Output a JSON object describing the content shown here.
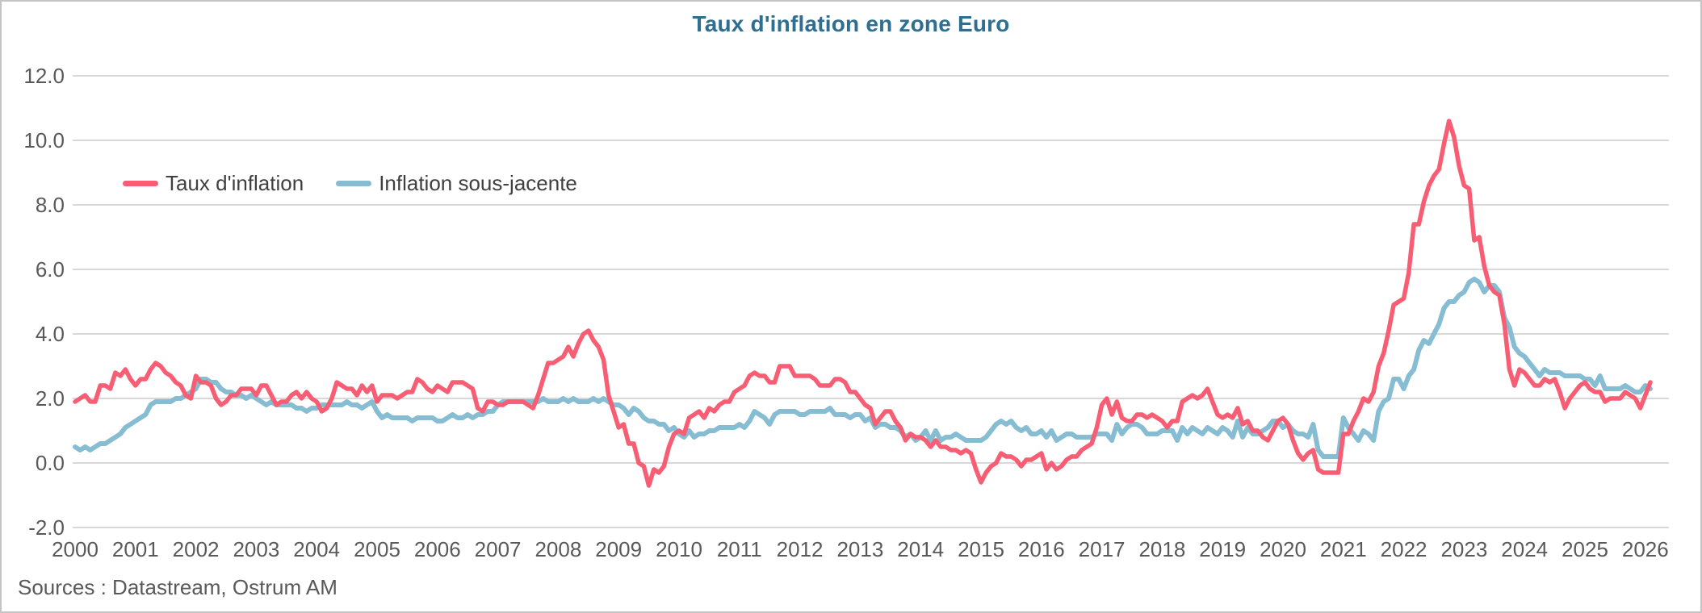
{
  "chart_data": {
    "type": "line",
    "title": "Taux d'inflation en zone Euro",
    "source_note": "Sources : Datastream, Ostrum AM",
    "x_unit": "month",
    "x_range": [
      "2000-01",
      "2026-02"
    ],
    "x_tick_labels": [
      "2000",
      "2001",
      "2002",
      "2003",
      "2004",
      "2005",
      "2006",
      "2007",
      "2008",
      "2009",
      "2010",
      "2011",
      "2012",
      "2013",
      "2014",
      "2015",
      "2016",
      "2017",
      "2018",
      "2019",
      "2020",
      "2021",
      "2022",
      "2023",
      "2024",
      "2025",
      "2026"
    ],
    "ylim": [
      -2,
      12
    ],
    "y_ticks": [
      12,
      10,
      8,
      6,
      4,
      2,
      0,
      -2
    ],
    "y_tick_labels": [
      "12.0",
      "10.0",
      "8.0",
      "6.0",
      "4.0",
      "2.0",
      "0.0",
      "-2.0"
    ],
    "grid": "horizontal",
    "legend_position": "top-left-inside",
    "colors": {
      "title": "#2E6E90",
      "axis_text": "#595959",
      "legend_text": "#404040",
      "grid": "#D8D8D8",
      "border": "#C4C4C4",
      "background": "#FFFFFF"
    },
    "series": [
      {
        "name": "Taux d'inflation",
        "color": "#F75D73",
        "values": [
          1.9,
          2.0,
          2.1,
          1.9,
          1.9,
          2.4,
          2.4,
          2.3,
          2.8,
          2.7,
          2.9,
          2.6,
          2.4,
          2.6,
          2.6,
          2.9,
          3.1,
          3.0,
          2.8,
          2.7,
          2.5,
          2.4,
          2.1,
          2.0,
          2.7,
          2.5,
          2.5,
          2.4,
          2.0,
          1.8,
          1.9,
          2.1,
          2.1,
          2.3,
          2.3,
          2.3,
          2.1,
          2.4,
          2.4,
          2.1,
          1.8,
          1.9,
          1.9,
          2.1,
          2.2,
          2.0,
          2.2,
          2.0,
          1.9,
          1.6,
          1.7,
          2.0,
          2.5,
          2.4,
          2.3,
          2.3,
          2.1,
          2.4,
          2.2,
          2.4,
          1.9,
          2.1,
          2.1,
          2.1,
          2.0,
          2.1,
          2.2,
          2.2,
          2.6,
          2.5,
          2.3,
          2.2,
          2.4,
          2.3,
          2.2,
          2.5,
          2.5,
          2.5,
          2.4,
          2.3,
          1.7,
          1.6,
          1.9,
          1.9,
          1.8,
          1.8,
          1.9,
          1.9,
          1.9,
          1.9,
          1.8,
          1.7,
          2.1,
          2.6,
          3.1,
          3.1,
          3.2,
          3.3,
          3.6,
          3.3,
          3.7,
          4.0,
          4.1,
          3.8,
          3.6,
          3.2,
          2.1,
          1.6,
          1.1,
          1.2,
          0.6,
          0.6,
          0.0,
          -0.1,
          -0.7,
          -0.2,
          -0.3,
          -0.1,
          0.5,
          0.9,
          1.0,
          0.9,
          1.4,
          1.5,
          1.6,
          1.4,
          1.7,
          1.6,
          1.8,
          1.9,
          1.9,
          2.2,
          2.3,
          2.4,
          2.7,
          2.8,
          2.7,
          2.7,
          2.5,
          2.5,
          3.0,
          3.0,
          3.0,
          2.7,
          2.7,
          2.7,
          2.7,
          2.6,
          2.4,
          2.4,
          2.4,
          2.6,
          2.6,
          2.5,
          2.2,
          2.2,
          2.0,
          1.8,
          1.7,
          1.2,
          1.4,
          1.6,
          1.6,
          1.3,
          1.1,
          0.7,
          0.9,
          0.8,
          0.8,
          0.7,
          0.5,
          0.7,
          0.5,
          0.5,
          0.4,
          0.4,
          0.3,
          0.4,
          0.3,
          -0.2,
          -0.6,
          -0.3,
          -0.1,
          0.0,
          0.3,
          0.2,
          0.2,
          0.1,
          -0.1,
          0.1,
          0.1,
          0.2,
          0.3,
          -0.2,
          0.0,
          -0.2,
          -0.1,
          0.1,
          0.2,
          0.2,
          0.4,
          0.5,
          0.6,
          1.1,
          1.8,
          2.0,
          1.5,
          1.9,
          1.4,
          1.3,
          1.3,
          1.5,
          1.5,
          1.4,
          1.5,
          1.4,
          1.3,
          1.1,
          1.3,
          1.3,
          1.9,
          2.0,
          2.1,
          2.0,
          2.1,
          2.3,
          1.9,
          1.5,
          1.4,
          1.5,
          1.4,
          1.7,
          1.2,
          1.3,
          1.0,
          1.0,
          0.8,
          0.7,
          1.0,
          1.3,
          1.4,
          1.2,
          0.7,
          0.3,
          0.1,
          0.3,
          0.4,
          -0.2,
          -0.3,
          -0.3,
          -0.3,
          -0.3,
          0.9,
          0.9,
          1.3,
          1.6,
          2.0,
          1.9,
          2.2,
          3.0,
          3.4,
          4.1,
          4.9,
          5.0,
          5.1,
          5.9,
          7.4,
          7.4,
          8.1,
          8.6,
          8.9,
          9.1,
          9.9,
          10.6,
          10.1,
          9.2,
          8.6,
          8.5,
          6.9,
          7.0,
          6.1,
          5.5,
          5.3,
          5.2,
          4.3,
          2.9,
          2.4,
          2.9,
          2.8,
          2.6,
          2.4,
          2.4,
          2.6,
          2.5,
          2.6,
          2.2,
          1.7,
          2.0,
          2.2,
          2.4,
          2.5,
          2.3,
          2.2,
          2.2,
          1.9,
          2.0,
          2.0,
          2.0,
          2.2,
          2.1,
          2.0,
          1.7,
          2.1,
          2.5
        ]
      },
      {
        "name": "Inflation sous-jacente",
        "color": "#87BDD2",
        "values": [
          0.5,
          0.4,
          0.5,
          0.4,
          0.5,
          0.6,
          0.6,
          0.7,
          0.8,
          0.9,
          1.1,
          1.2,
          1.3,
          1.4,
          1.5,
          1.8,
          1.9,
          1.9,
          1.9,
          1.9,
          2.0,
          2.0,
          2.1,
          2.2,
          2.3,
          2.6,
          2.6,
          2.5,
          2.5,
          2.3,
          2.2,
          2.2,
          2.1,
          2.1,
          2.0,
          2.1,
          2.0,
          1.9,
          1.8,
          1.9,
          1.8,
          1.8,
          1.8,
          1.8,
          1.7,
          1.7,
          1.6,
          1.7,
          1.7,
          1.8,
          1.8,
          1.8,
          1.8,
          1.8,
          1.9,
          1.8,
          1.8,
          1.7,
          1.8,
          1.9,
          1.6,
          1.4,
          1.5,
          1.4,
          1.4,
          1.4,
          1.4,
          1.3,
          1.4,
          1.4,
          1.4,
          1.4,
          1.3,
          1.3,
          1.4,
          1.5,
          1.4,
          1.4,
          1.5,
          1.4,
          1.5,
          1.5,
          1.6,
          1.6,
          1.8,
          1.9,
          1.9,
          1.9,
          1.9,
          1.9,
          1.9,
          1.9,
          1.9,
          2.0,
          1.9,
          1.9,
          1.9,
          2.0,
          1.9,
          2.0,
          1.9,
          1.9,
          1.9,
          2.0,
          1.9,
          2.0,
          1.9,
          1.8,
          1.8,
          1.7,
          1.5,
          1.7,
          1.6,
          1.4,
          1.3,
          1.3,
          1.2,
          1.2,
          1.0,
          1.1,
          0.9,
          0.8,
          1.0,
          0.8,
          0.9,
          0.9,
          1.0,
          1.0,
          1.1,
          1.1,
          1.1,
          1.1,
          1.2,
          1.1,
          1.3,
          1.6,
          1.5,
          1.4,
          1.2,
          1.5,
          1.6,
          1.6,
          1.6,
          1.6,
          1.5,
          1.5,
          1.6,
          1.6,
          1.6,
          1.6,
          1.7,
          1.5,
          1.5,
          1.5,
          1.4,
          1.5,
          1.5,
          1.3,
          1.4,
          1.1,
          1.2,
          1.2,
          1.1,
          1.1,
          1.0,
          0.8,
          0.9,
          0.7,
          0.8,
          1.0,
          0.7,
          1.0,
          0.7,
          0.8,
          0.8,
          0.9,
          0.8,
          0.7,
          0.7,
          0.7,
          0.7,
          0.8,
          1.0,
          1.2,
          1.3,
          1.2,
          1.3,
          1.1,
          1.0,
          1.1,
          0.9,
          0.9,
          1.0,
          0.8,
          1.0,
          0.7,
          0.8,
          0.9,
          0.9,
          0.8,
          0.8,
          0.8,
          0.8,
          0.9,
          0.9,
          0.9,
          0.7,
          1.2,
          0.9,
          1.1,
          1.2,
          1.2,
          1.1,
          0.9,
          0.9,
          0.9,
          1.0,
          1.0,
          1.0,
          0.7,
          1.1,
          0.9,
          1.1,
          1.0,
          0.9,
          1.1,
          1.0,
          0.9,
          1.1,
          1.0,
          0.8,
          1.3,
          0.8,
          1.1,
          0.9,
          0.9,
          1.0,
          1.1,
          1.3,
          1.3,
          1.1,
          1.2,
          1.0,
          0.9,
          0.9,
          0.8,
          1.2,
          0.4,
          0.2,
          0.2,
          0.2,
          0.2,
          1.4,
          1.1,
          0.9,
          0.7,
          1.0,
          0.9,
          0.7,
          1.6,
          1.9,
          2.0,
          2.6,
          2.6,
          2.3,
          2.7,
          2.9,
          3.5,
          3.8,
          3.7,
          4.0,
          4.3,
          4.8,
          5.0,
          5.0,
          5.2,
          5.3,
          5.6,
          5.7,
          5.6,
          5.3,
          5.5,
          5.5,
          5.3,
          4.5,
          4.2,
          3.6,
          3.4,
          3.3,
          3.1,
          2.9,
          2.7,
          2.9,
          2.8,
          2.8,
          2.8,
          2.7,
          2.7,
          2.7,
          2.7,
          2.6,
          2.6,
          2.4,
          2.7,
          2.3,
          2.3,
          2.3,
          2.3,
          2.4,
          2.3,
          2.2,
          2.2,
          2.4,
          2.3
        ]
      }
    ]
  }
}
